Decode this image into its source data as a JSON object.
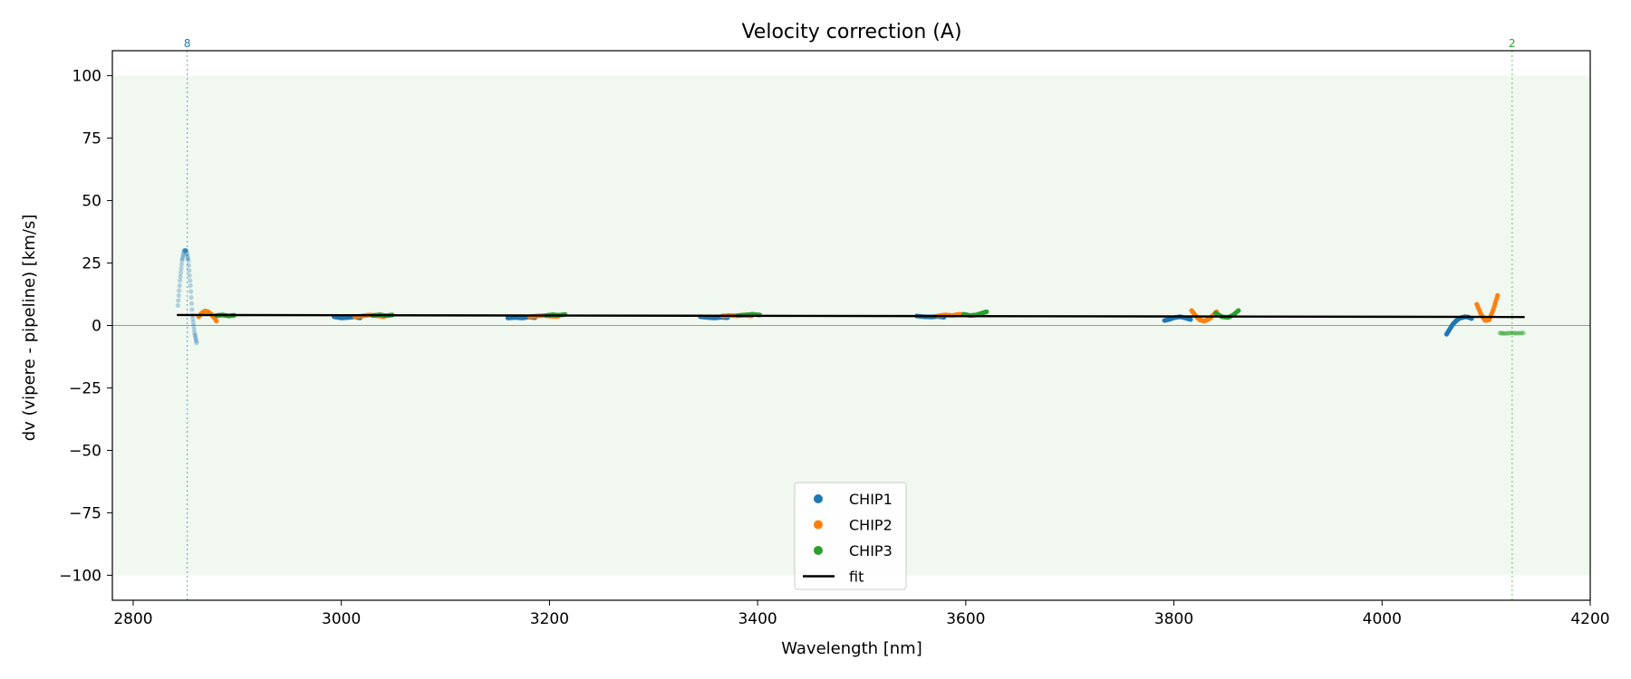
{
  "chart_data": {
    "type": "scatter",
    "title": "Velocity correction (A)",
    "xlabel": "Wavelength [nm]",
    "ylabel": "dv (vipere - pipeline) [km/s]",
    "xlim": [
      2780,
      4200
    ],
    "ylim": [
      -110,
      110
    ],
    "xticks": [
      2800,
      3000,
      3200,
      3400,
      3600,
      3800,
      4000,
      4200
    ],
    "yticks": [
      -100,
      -75,
      -50,
      -25,
      0,
      25,
      50,
      75,
      100
    ],
    "grid": false,
    "legend_placement": "lower center",
    "shaded_band": {
      "ymin": -100,
      "ymax": 100,
      "color": "#2ca02c"
    },
    "zero_line": {
      "y": 0,
      "color": "#999999"
    },
    "markers": [
      {
        "x": 2852,
        "label": "8",
        "color": "#1f77b4"
      },
      {
        "x": 4125,
        "label": "2",
        "color": "#2ca02c"
      }
    ],
    "series": [
      {
        "name": "CHIP1",
        "color": "#1f77b4",
        "segments": [
          {
            "x": [
              2843,
              2845,
              2847,
              2849,
              2851,
              2853,
              2855,
              2857,
              2859,
              2861
            ],
            "y": [
              8,
              18,
              26,
              30,
              30,
              26,
              16,
              4,
              -3,
              -7
            ],
            "faded": true
          },
          {
            "x": [
              2993,
              3000,
              3007,
              3013,
              3018
            ],
            "y": [
              3.5,
              3.0,
              3.2,
              3.5,
              3.0
            ]
          },
          {
            "x": [
              3160,
              3167,
              3174,
              3180,
              3186
            ],
            "y": [
              3.0,
              3.2,
              3.0,
              3.4,
              3.1
            ]
          },
          {
            "x": [
              3345,
              3352,
              3359,
              3365,
              3371
            ],
            "y": [
              3.5,
              3.2,
              3.0,
              3.3,
              3.1
            ]
          },
          {
            "x": [
              3553,
              3560,
              3567,
              3573,
              3579
            ],
            "y": [
              3.8,
              3.5,
              3.4,
              3.6,
              3.3
            ]
          },
          {
            "x": [
              3791,
              3796,
              3801,
              3806,
              3811,
              3816
            ],
            "y": [
              2.0,
              2.5,
              3.2,
              3.5,
              3.0,
              2.4
            ]
          },
          {
            "x": [
              4062,
              4065,
              4068,
              4071,
              4074,
              4077,
              4080,
              4083,
              4086
            ],
            "y": [
              -3.5,
              -1.5,
              0.5,
              1.8,
              2.8,
              3.2,
              3.5,
              3.3,
              2.8
            ]
          }
        ]
      },
      {
        "name": "CHIP2",
        "color": "#ff7f0e",
        "segments": [
          {
            "x": [
              2863,
              2866,
              2869,
              2872,
              2875,
              2878,
              2880
            ],
            "y": [
              3.5,
              5.0,
              5.8,
              5.5,
              4.5,
              3.0,
              1.8
            ]
          },
          {
            "x": [
              3013,
              3020,
              3027,
              3034,
              3041
            ],
            "y": [
              3.5,
              3.8,
              4.2,
              3.9,
              3.5
            ]
          },
          {
            "x": [
              3181,
              3188,
              3195,
              3202,
              3208
            ],
            "y": [
              3.5,
              3.8,
              4.0,
              3.7,
              3.6
            ]
          },
          {
            "x": [
              3366,
              3373,
              3380,
              3387,
              3394
            ],
            "y": [
              3.8,
              4.0,
              3.9,
              4.1,
              3.8
            ]
          },
          {
            "x": [
              3573,
              3580,
              3587,
              3594,
              3601
            ],
            "y": [
              3.8,
              4.2,
              4.0,
              4.5,
              4.2
            ]
          },
          {
            "x": [
              3817,
              3821,
              3825,
              3829,
              3833,
              3837,
              3841
            ],
            "y": [
              6.0,
              3.8,
              2.2,
              1.8,
              2.4,
              3.8,
              5.5
            ]
          },
          {
            "x": [
              4091,
              4095,
              4099,
              4103,
              4107,
              4111
            ],
            "y": [
              8.5,
              4.5,
              2.0,
              2.3,
              6.5,
              12.0
            ]
          }
        ]
      },
      {
        "name": "CHIP3",
        "color": "#2ca02c",
        "segments": [
          {
            "x": [
              2880,
              2886,
              2892,
              2897
            ],
            "y": [
              4.0,
              4.2,
              3.8,
              4.1
            ]
          },
          {
            "x": [
              3030,
              3037,
              3043,
              3049
            ],
            "y": [
              4.0,
              4.3,
              3.9,
              4.2
            ]
          },
          {
            "x": [
              3197,
              3203,
              3209,
              3215
            ],
            "y": [
              4.0,
              4.3,
              4.1,
              4.4
            ]
          },
          {
            "x": [
              3381,
              3388,
              3395,
              3402
            ],
            "y": [
              4.0,
              4.2,
              4.5,
              4.2
            ]
          },
          {
            "x": [
              3598,
              3604,
              3610,
              3616,
              3620
            ],
            "y": [
              4.5,
              4.0,
              4.2,
              5.0,
              5.5
            ]
          },
          {
            "x": [
              3840,
              3846,
              3852,
              3857,
              3862
            ],
            "y": [
              5.0,
              3.5,
              3.2,
              4.2,
              6.0
            ]
          },
          {
            "x": [
              4113,
              4118,
              4124,
              4130,
              4136
            ],
            "y": [
              -3.0,
              -3.2,
              -3.0,
              -3.1,
              -3.0
            ],
            "faded": true
          }
        ]
      }
    ],
    "fit": {
      "name": "fit",
      "color": "#000000",
      "x": [
        2842,
        4137
      ],
      "y": [
        4.2,
        3.4
      ]
    },
    "legend": [
      "CHIP1",
      "CHIP2",
      "CHIP3",
      "fit"
    ]
  }
}
